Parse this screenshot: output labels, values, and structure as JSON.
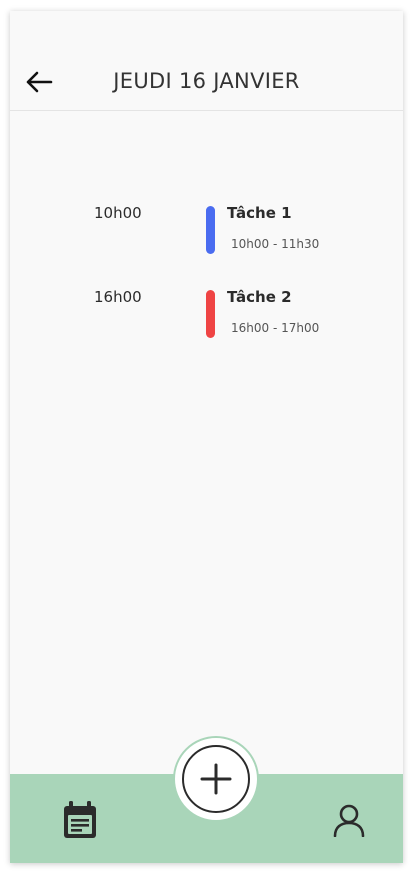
{
  "header": {
    "title": "JEUDI 16 JANVIER",
    "back_icon": "arrow-left-icon"
  },
  "tasks": [
    {
      "time": "10h00",
      "title": "Tâche 1",
      "range": "10h00 - 11h30",
      "color": "#4a6cf0"
    },
    {
      "time": "16h00",
      "title": "Tâche 2",
      "range": "16h00 - 17h00",
      "color": "#ef4444"
    }
  ],
  "nav": {
    "left_icon": "calendar-icon",
    "center_icon": "plus-icon",
    "right_icon": "user-icon",
    "bar_color": "#a9d5b9"
  }
}
